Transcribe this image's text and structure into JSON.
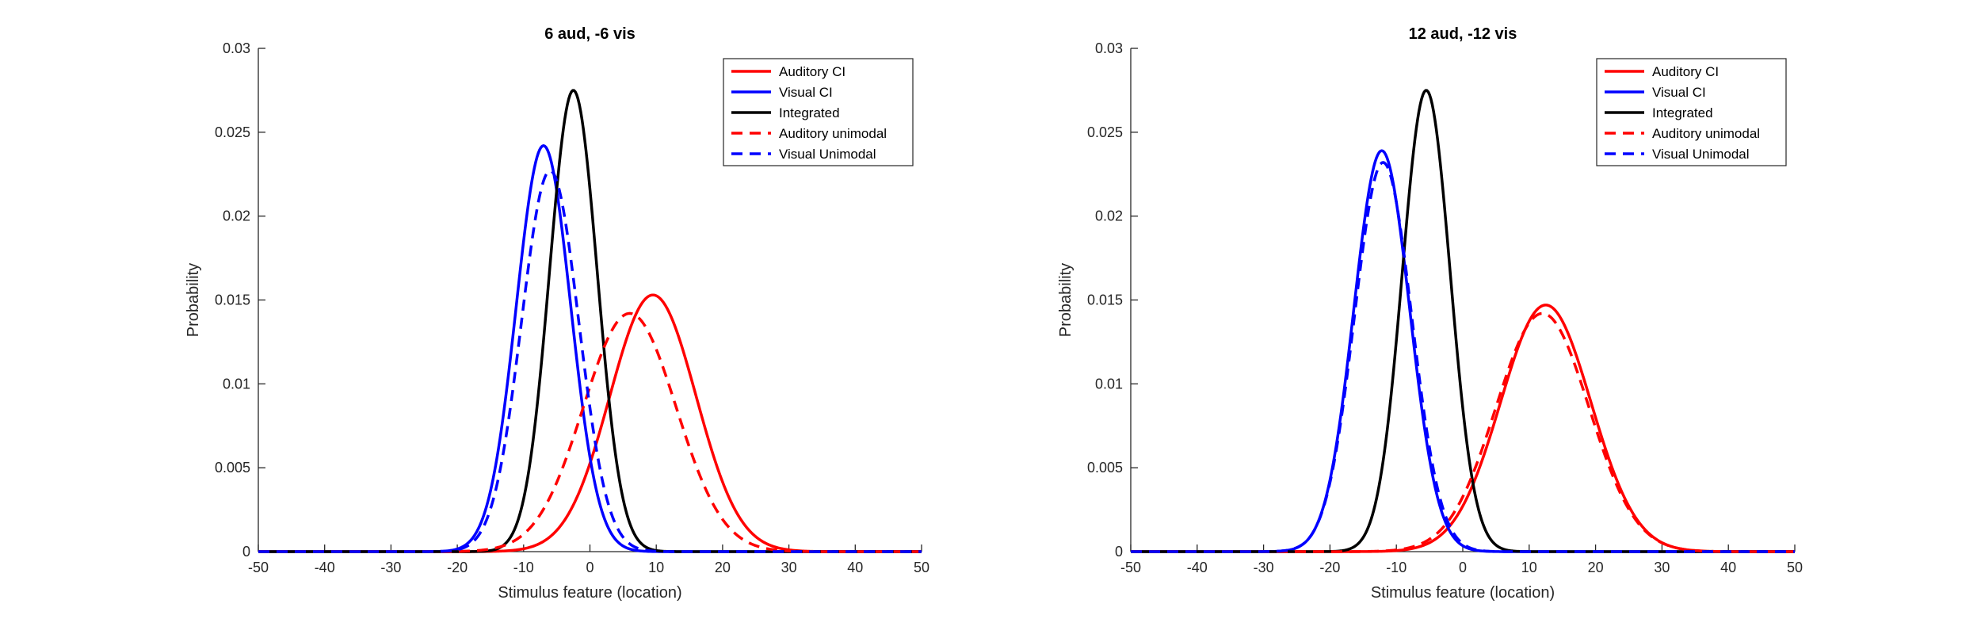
{
  "chart_data": [
    {
      "type": "line",
      "title": "6 aud, -6 vis",
      "xlabel": "Stimulus feature (location)",
      "ylabel": "Probability",
      "xlim": [
        -50,
        50
      ],
      "ylim": [
        0,
        0.03
      ],
      "xticks": [
        "-50",
        "-40",
        "-30",
        "-20",
        "-10",
        "0",
        "10",
        "20",
        "30",
        "40",
        "50"
      ],
      "yticks": [
        "0",
        "0.005",
        "0.01",
        "0.015",
        "0.02",
        "0.025",
        "0.03"
      ],
      "grid": false,
      "legend_position": "top-right",
      "series": [
        {
          "name": "Auditory CI",
          "color": "#ff0000",
          "dash": "solid",
          "mean": 9.5,
          "sd": 6.5,
          "peak": 0.0153
        },
        {
          "name": "Visual CI",
          "color": "#0000ff",
          "dash": "solid",
          "mean": -7.0,
          "sd": 4.1,
          "peak": 0.0242
        },
        {
          "name": "Integrated",
          "color": "#000000",
          "dash": "solid",
          "mean": -2.5,
          "sd": 3.6,
          "peak": 0.0275
        },
        {
          "name": "Auditory unimodal",
          "color": "#ff0000",
          "dash": "dashed",
          "mean": 6.0,
          "sd": 7.0,
          "peak": 0.0142
        },
        {
          "name": "Visual Unimodal",
          "color": "#0000ff",
          "dash": "dashed",
          "mean": -6.0,
          "sd": 4.3,
          "peak": 0.0227
        }
      ]
    },
    {
      "type": "line",
      "title": "12 aud, -12 vis",
      "xlabel": "Stimulus feature (location)",
      "ylabel": "Probability",
      "xlim": [
        -50,
        50
      ],
      "ylim": [
        0,
        0.03
      ],
      "xticks": [
        "-50",
        "-40",
        "-30",
        "-20",
        "-10",
        "0",
        "10",
        "20",
        "30",
        "40",
        "50"
      ],
      "yticks": [
        "0",
        "0.005",
        "0.01",
        "0.015",
        "0.02",
        "0.025",
        "0.03"
      ],
      "grid": false,
      "legend_position": "top-right",
      "series": [
        {
          "name": "Auditory CI",
          "color": "#ff0000",
          "dash": "solid",
          "mean": 12.5,
          "sd": 6.8,
          "peak": 0.0147
        },
        {
          "name": "Visual CI",
          "color": "#0000ff",
          "dash": "solid",
          "mean": -12.2,
          "sd": 4.2,
          "peak": 0.0239
        },
        {
          "name": "Integrated",
          "color": "#000000",
          "dash": "solid",
          "mean": -5.5,
          "sd": 3.6,
          "peak": 0.0275
        },
        {
          "name": "Auditory unimodal",
          "color": "#ff0000",
          "dash": "dashed",
          "mean": 12.0,
          "sd": 7.0,
          "peak": 0.0142
        },
        {
          "name": "Visual Unimodal",
          "color": "#0000ff",
          "dash": "dashed",
          "mean": -12.0,
          "sd": 4.3,
          "peak": 0.0232
        }
      ]
    }
  ]
}
